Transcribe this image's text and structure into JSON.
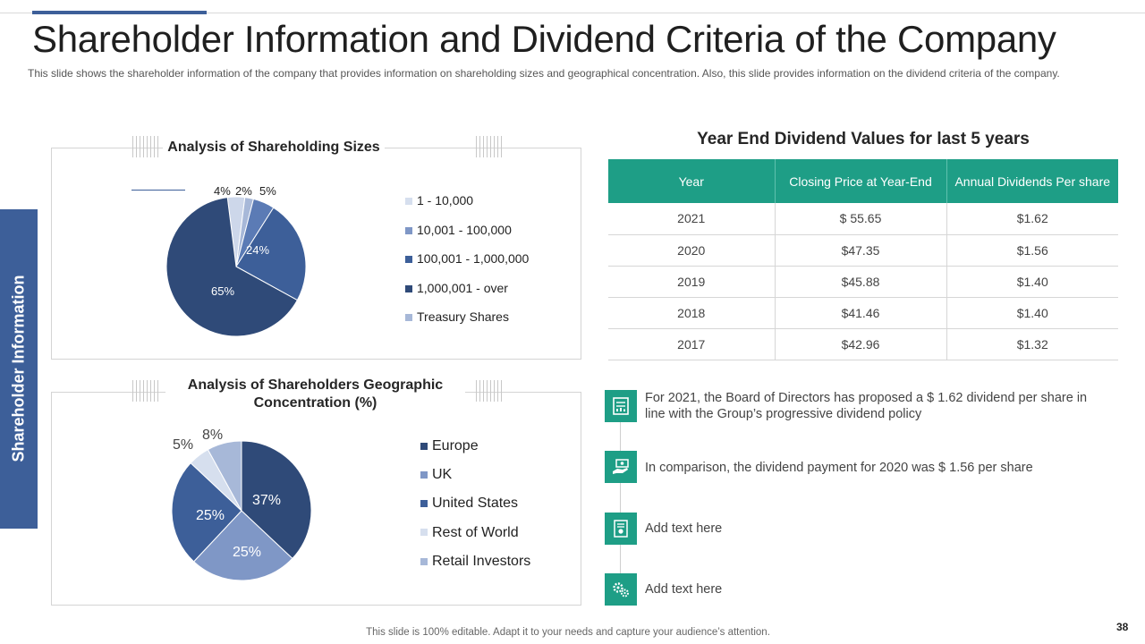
{
  "header": {
    "title": "Shareholder Information and Dividend Criteria of the Company",
    "subtitle": "This slide shows the shareholder information of the company that provides information on shareholding sizes and geographical concentration. Also, this slide provides information on the dividend criteria of the company."
  },
  "side_tab": {
    "label": "Shareholder Information"
  },
  "colors": {
    "accent_blue": "#3d5f99",
    "teal": "#1e9e86",
    "navy": "#2f4a78",
    "mid_blue": "#3d5f99",
    "light_blue": "#a7b8d8",
    "pale_blue": "#d6dfee"
  },
  "chart_data": [
    {
      "type": "pie",
      "title": "Analysis of Shareholding Sizes",
      "categories": [
        "1 - 10,000",
        "10,001 - 100,000",
        "100,001 - 1,000,000",
        "1,000,001 - over",
        "Treasury Shares"
      ],
      "values": [
        4,
        2,
        5,
        24,
        65
      ],
      "slice_labels": [
        "4%",
        "2%",
        "5%",
        "24%",
        "65%"
      ],
      "slice_colors": [
        "#cdd7ea",
        "#a7b8d8",
        "#5b7bb5",
        "#3d5f99",
        "#2f4a78"
      ],
      "legend_colors": [
        "#d6dfee",
        "#7f97c6",
        "#3d5f99",
        "#2f4a78",
        "#a7b8d8"
      ],
      "legend": "right"
    },
    {
      "type": "pie",
      "title": "Analysis of Shareholders Geographic Concentration (%)",
      "categories": [
        "Europe",
        "UK",
        "United States",
        "Rest of World",
        "Retail Investors"
      ],
      "values": [
        37,
        25,
        25,
        5,
        8
      ],
      "slice_labels": [
        "37%",
        "25%",
        "25%",
        "5%",
        "8%"
      ],
      "slice_colors": [
        "#2f4a78",
        "#7f97c6",
        "#3d5f99",
        "#d6dfee",
        "#a7b8d8"
      ],
      "legend_colors": [
        "#2f4a78",
        "#7f97c6",
        "#3d5f99",
        "#d6dfee",
        "#a7b8d8"
      ],
      "legend": "right"
    }
  ],
  "dividend_table": {
    "title": "Year End Dividend Values for last 5 years",
    "columns": [
      "Year",
      "Closing Price at Year-End",
      "Annual Dividends Per share"
    ],
    "rows": [
      [
        "2021",
        "$ 55.65",
        "$1.62"
      ],
      [
        "2020",
        "$47.35",
        "$1.56"
      ],
      [
        "2019",
        "$45.88",
        "$1.40"
      ],
      [
        "2018",
        "$41.46",
        "$1.40"
      ],
      [
        "2017",
        "$42.96",
        "$1.32"
      ]
    ]
  },
  "timeline": [
    {
      "icon": "document-chart-icon",
      "text": "For 2021, the Board of Directors has proposed a $ 1.62 dividend per share in line with the Group’s progressive dividend policy"
    },
    {
      "icon": "money-hand-icon",
      "text": "In comparison, the dividend payment for 2020 was $ 1.56 per share"
    },
    {
      "icon": "certificate-icon",
      "text": "Add text here"
    },
    {
      "icon": "gears-icon",
      "text": "Add text here"
    }
  ],
  "footer": {
    "note": "This slide is 100% editable. Adapt it to your needs and capture your audience’s attention.",
    "page_number": "38"
  }
}
